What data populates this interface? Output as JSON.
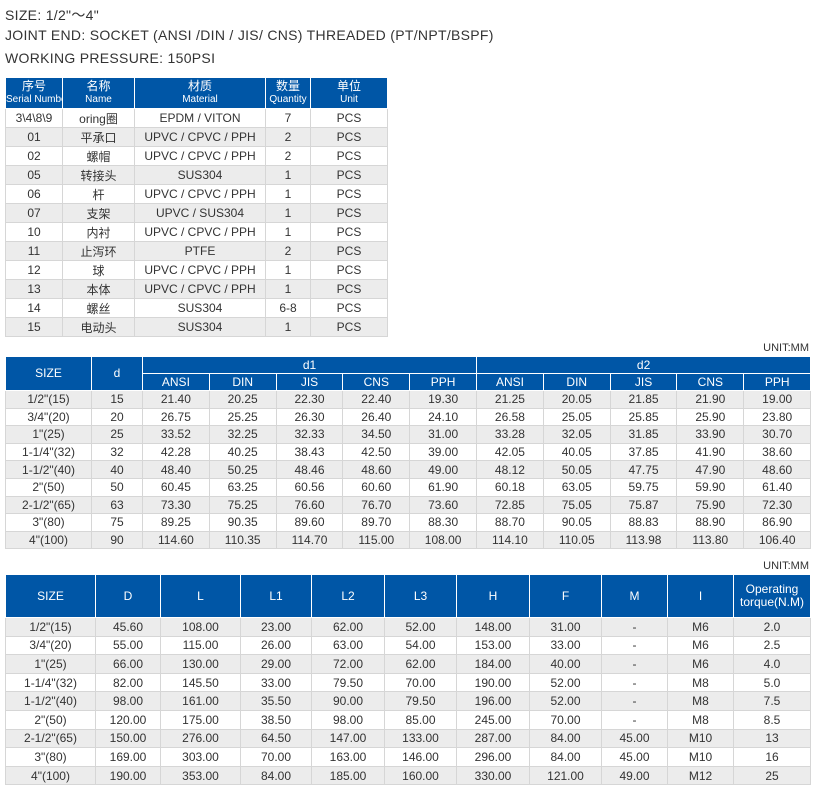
{
  "spec": {
    "size": "SIZE: 1/2\"～4\"",
    "joint": "JOINT END: SOCKET (ANSI /DIN / JIS/ CNS)    THREADED (PT/NPT/BSPF)",
    "pressure": "WORKING  PRESSURE: 150PSI"
  },
  "parts": {
    "headers": [
      {
        "cn": "序号",
        "en": "Serial Number"
      },
      {
        "cn": "名称",
        "en": "Name"
      },
      {
        "cn": "材质",
        "en": "Material"
      },
      {
        "cn": "数量",
        "en": "Quantity"
      },
      {
        "cn": "单位",
        "en": "Unit"
      }
    ],
    "rows": [
      [
        "3\\4\\8\\9",
        "oring圈",
        "EPDM / VITON",
        "7",
        "PCS"
      ],
      [
        "01",
        "平承口",
        "UPVC / CPVC / PPH",
        "2",
        "PCS"
      ],
      [
        "02",
        "螺帽",
        "UPVC / CPVC / PPH",
        "2",
        "PCS"
      ],
      [
        "05",
        "转接头",
        "SUS304",
        "1",
        "PCS"
      ],
      [
        "06",
        "杆",
        "UPVC / CPVC / PPH",
        "1",
        "PCS"
      ],
      [
        "07",
        "支架",
        "UPVC / SUS304",
        "1",
        "PCS"
      ],
      [
        "10",
        "内衬",
        "UPVC / CPVC / PPH",
        "1",
        "PCS"
      ],
      [
        "11",
        "止泻环",
        "PTFE",
        "2",
        "PCS"
      ],
      [
        "12",
        "球",
        "UPVC / CPVC / PPH",
        "1",
        "PCS"
      ],
      [
        "13",
        "本体",
        "UPVC / CPVC / PPH",
        "1",
        "PCS"
      ],
      [
        "14",
        "螺丝",
        "SUS304",
        "6-8",
        "PCS"
      ],
      [
        "15",
        "电动头",
        "SUS304",
        "1",
        "PCS"
      ]
    ]
  },
  "dims1": {
    "unit": "UNIT:MM",
    "size_header": "SIZE",
    "d_header": "d",
    "d1_header": "d1",
    "d2_header": "d2",
    "sub_headers": [
      "ANSI",
      "DIN",
      "JIS",
      "CNS",
      "PPH",
      "ANSI",
      "DIN",
      "JIS",
      "CNS",
      "PPH"
    ],
    "rows": [
      [
        "1/2\"(15)",
        "15",
        "21.40",
        "20.25",
        "22.30",
        "22.40",
        "19.30",
        "21.25",
        "20.05",
        "21.85",
        "21.90",
        "19.00"
      ],
      [
        "3/4\"(20)",
        "20",
        "26.75",
        "25.25",
        "26.30",
        "26.40",
        "24.10",
        "26.58",
        "25.05",
        "25.85",
        "25.90",
        "23.80"
      ],
      [
        "1\"(25)",
        "25",
        "33.52",
        "32.25",
        "32.33",
        "34.50",
        "31.00",
        "33.28",
        "32.05",
        "31.85",
        "33.90",
        "30.70"
      ],
      [
        "1-1/4\"(32)",
        "32",
        "42.28",
        "40.25",
        "38.43",
        "42.50",
        "39.00",
        "42.05",
        "40.05",
        "37.85",
        "41.90",
        "38.60"
      ],
      [
        "1-1/2\"(40)",
        "40",
        "48.40",
        "50.25",
        "48.46",
        "48.60",
        "49.00",
        "48.12",
        "50.05",
        "47.75",
        "47.90",
        "48.60"
      ],
      [
        "2\"(50)",
        "50",
        "60.45",
        "63.25",
        "60.56",
        "60.60",
        "61.90",
        "60.18",
        "63.05",
        "59.75",
        "59.90",
        "61.40"
      ],
      [
        "2-1/2\"(65)",
        "63",
        "73.30",
        "75.25",
        "76.60",
        "76.70",
        "73.60",
        "72.85",
        "75.05",
        "75.87",
        "75.90",
        "72.30"
      ],
      [
        "3\"(80)",
        "75",
        "89.25",
        "90.35",
        "89.60",
        "89.70",
        "88.30",
        "88.70",
        "90.05",
        "88.83",
        "88.90",
        "86.90"
      ],
      [
        "4\"(100)",
        "90",
        "114.60",
        "110.35",
        "114.70",
        "115.00",
        "108.00",
        "114.10",
        "110.05",
        "113.98",
        "113.80",
        "106.40"
      ]
    ]
  },
  "dims2": {
    "unit": "UNIT:MM",
    "headers": [
      "SIZE",
      "D",
      "L",
      "L1",
      "L2",
      "L3",
      "H",
      "F",
      "M",
      "I",
      "Operating torque(N.M)"
    ],
    "rows": [
      [
        "1/2\"(15)",
        "45.60",
        "108.00",
        "23.00",
        "62.00",
        "52.00",
        "148.00",
        "31.00",
        "-",
        "M6",
        "2.0"
      ],
      [
        "3/4\"(20)",
        "55.00",
        "115.00",
        "26.00",
        "63.00",
        "54.00",
        "153.00",
        "33.00",
        "-",
        "M6",
        "2.5"
      ],
      [
        "1\"(25)",
        "66.00",
        "130.00",
        "29.00",
        "72.00",
        "62.00",
        "184.00",
        "40.00",
        "-",
        "M6",
        "4.0"
      ],
      [
        "1-1/4\"(32)",
        "82.00",
        "145.50",
        "33.00",
        "79.50",
        "70.00",
        "190.00",
        "52.00",
        "-",
        "M8",
        "5.0"
      ],
      [
        "1-1/2\"(40)",
        "98.00",
        "161.00",
        "35.50",
        "90.00",
        "79.50",
        "196.00",
        "52.00",
        "-",
        "M8",
        "7.5"
      ],
      [
        "2\"(50)",
        "120.00",
        "175.00",
        "38.50",
        "98.00",
        "85.00",
        "245.00",
        "70.00",
        "-",
        "M8",
        "8.5"
      ],
      [
        "2-1/2\"(65)",
        "150.00",
        "276.00",
        "64.50",
        "147.00",
        "133.00",
        "287.00",
        "84.00",
        "45.00",
        "M10",
        "13"
      ],
      [
        "3\"(80)",
        "169.00",
        "303.00",
        "70.00",
        "163.00",
        "146.00",
        "296.00",
        "84.00",
        "45.00",
        "M10",
        "16"
      ],
      [
        "4\"(100)",
        "190.00",
        "353.00",
        "84.00",
        "185.00",
        "160.00",
        "330.00",
        "121.00",
        "49.00",
        "M12",
        "25"
      ]
    ]
  },
  "colors": {
    "header_bg": "#0056a6",
    "stripe": "#ececec"
  }
}
